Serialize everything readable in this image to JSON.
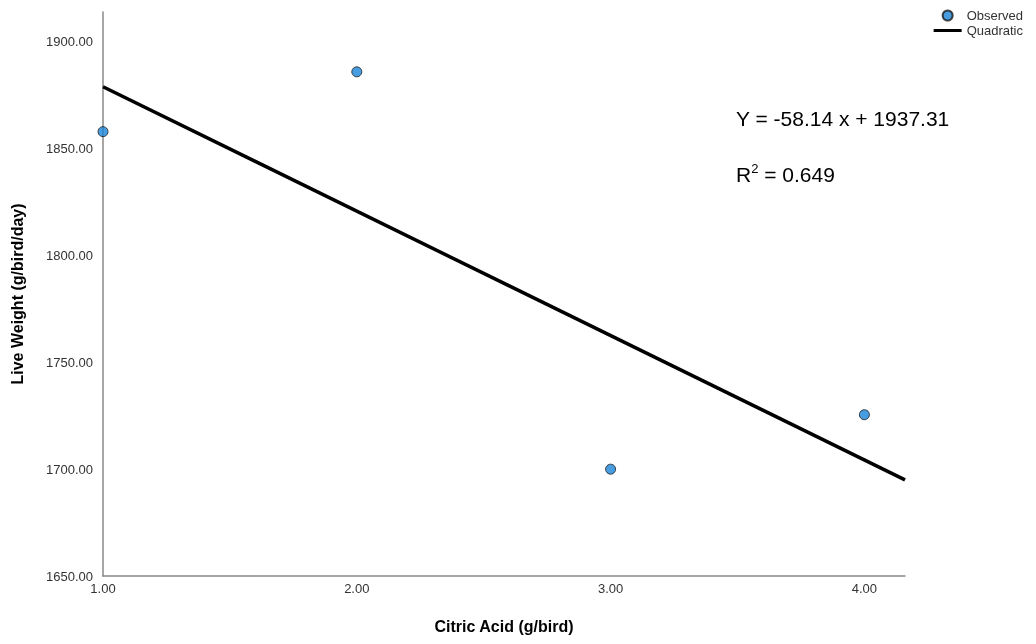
{
  "chart_data": {
    "type": "scatter",
    "xlabel": "Citric Acid (g/bird)",
    "ylabel": "Live Weight (g/bird/day)",
    "series": [
      {
        "name": "Observed",
        "color": "#1a84d8",
        "marker": "circle",
        "x": [
          1,
          2,
          3,
          4
        ],
        "values": [
          1858,
          1886,
          1700,
          1725.5
        ]
      },
      {
        "name": "Quadratic",
        "type": "line",
        "marker": "none",
        "color": "#000000",
        "x": [
          1,
          4.16
        ],
        "values": [
          1879,
          1695
        ]
      }
    ],
    "xlim": [
      1,
      4.16
    ],
    "ylim": [
      1650,
      1914
    ],
    "xticks": [
      {
        "value": 1,
        "label": "1.00"
      },
      {
        "value": 2,
        "label": "2.00"
      },
      {
        "value": 3,
        "label": "3.00"
      },
      {
        "value": 4,
        "label": "4.00"
      }
    ],
    "yticks": [
      {
        "value": 1650,
        "label": "1650.00"
      },
      {
        "value": 1700,
        "label": "1700.00"
      },
      {
        "value": 1750,
        "label": "1750.00"
      },
      {
        "value": 1800,
        "label": "1800.00"
      },
      {
        "value": 1850,
        "label": "1850.00"
      },
      {
        "value": 1900,
        "label": "1900.00"
      }
    ],
    "annotations": [
      "Y = -58.14 x + 1937.31",
      "R$^{2}$ = 0.649"
    ],
    "legend": "top right",
    "grid": false,
    "line_style": "solid"
  }
}
